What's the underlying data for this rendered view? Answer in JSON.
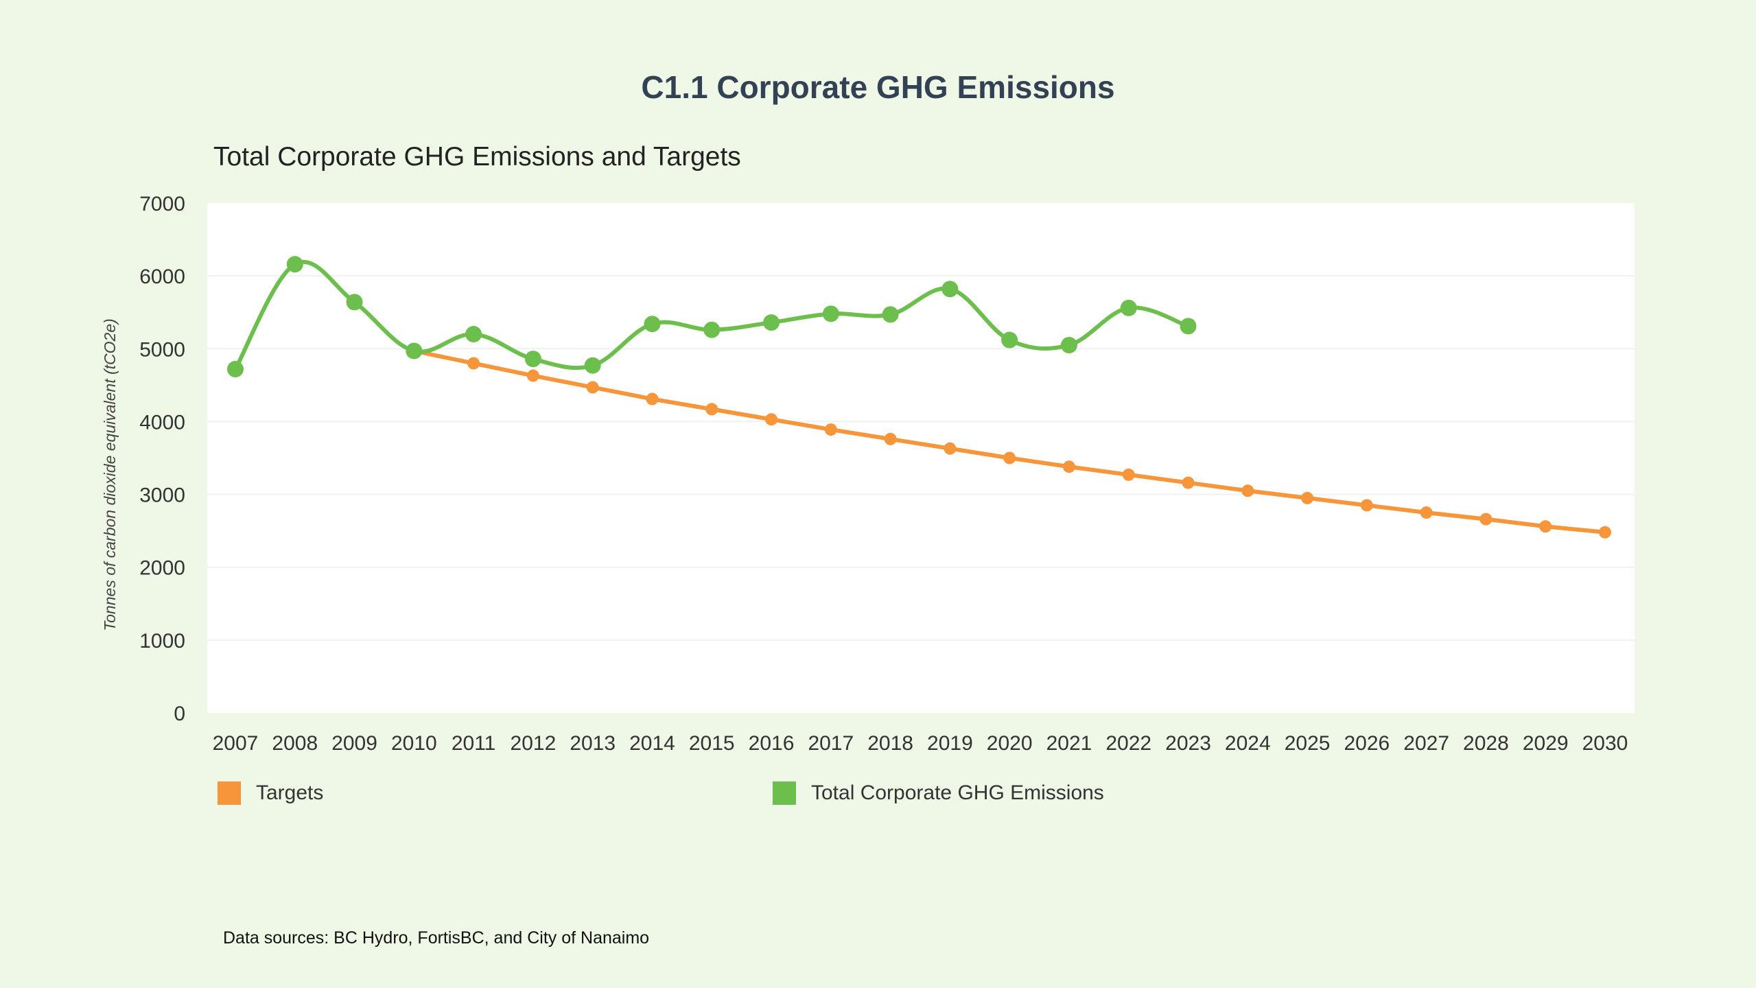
{
  "page": {
    "title": "C1.1 Corporate GHG Emissions",
    "source_note": "Data sources: BC Hydro, FortisBC, and City of Nanaimo"
  },
  "colors": {
    "background": "#eff7e6",
    "plot_background": "#ffffff",
    "targets": "#f7953a",
    "emissions": "#6cbf4c",
    "title": "#334155"
  },
  "chart_data": {
    "type": "line",
    "title": "Total Corporate GHG Emissions and Targets",
    "xlabel": "",
    "ylabel": "Tonnes of carbon dioxide equivalent (tCO2e)",
    "ylim": [
      0,
      7000
    ],
    "yticks": [
      0,
      1000,
      2000,
      3000,
      4000,
      5000,
      6000,
      7000
    ],
    "grid": true,
    "legend_position": "bottom",
    "categories": [
      "2007",
      "2008",
      "2009",
      "2010",
      "2011",
      "2012",
      "2013",
      "2014",
      "2015",
      "2016",
      "2017",
      "2018",
      "2019",
      "2020",
      "2021",
      "2022",
      "2023",
      "2024",
      "2025",
      "2026",
      "2027",
      "2028",
      "2029",
      "2030"
    ],
    "series": [
      {
        "name": "Targets",
        "color": "#f7953a",
        "smooth": false,
        "values": [
          null,
          null,
          null,
          4970,
          4800,
          4630,
          4470,
          4310,
          4170,
          4030,
          3890,
          3760,
          3630,
          3500,
          3380,
          3270,
          3160,
          3050,
          2950,
          2850,
          2750,
          2660,
          2560,
          2480
        ]
      },
      {
        "name": "Total Corporate GHG Emissions",
        "color": "#6cbf4c",
        "smooth": true,
        "values": [
          4720,
          6160,
          5640,
          4970,
          5200,
          4860,
          4770,
          5340,
          5260,
          5360,
          5480,
          5470,
          5820,
          5120,
          5050,
          5560,
          5310,
          null,
          null,
          null,
          null,
          null,
          null,
          null
        ]
      }
    ]
  }
}
